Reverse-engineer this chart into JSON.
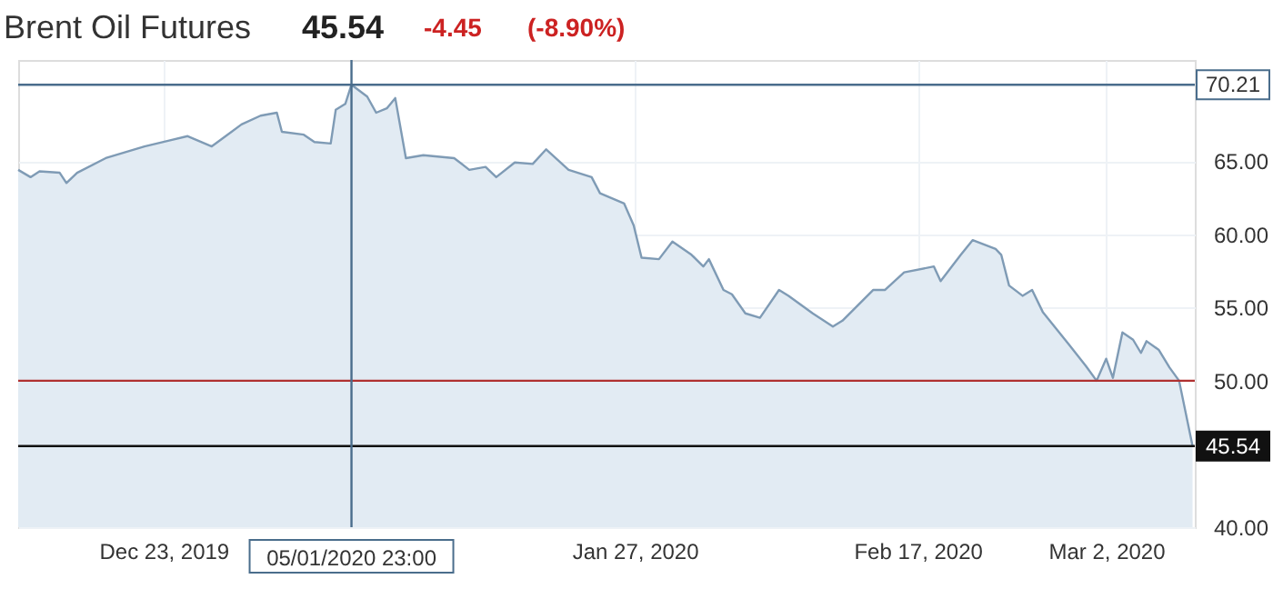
{
  "chart_data": {
    "type": "area",
    "title": "Brent Oil Futures",
    "annotations": [
      "45.54",
      "-4.45",
      "(-8.90%)"
    ],
    "x": [
      "2019-12-12T05:00",
      "2019-12-13T03:00",
      "2019-12-13T19:00",
      "2019-12-15T07:00",
      "2019-12-15T19:00",
      "2019-12-16T14:00",
      "2019-12-18T17:00",
      "2019-12-21T14:00",
      "2019-12-23T10:00",
      "2019-12-24T19:00",
      "2019-12-26T14:00",
      "2019-12-28T19:00",
      "2019-12-30T05:00",
      "2019-12-31T10:00",
      "2019-12-31T19:00",
      "2020-01-02T10:00",
      "2020-01-03T05:00",
      "2020-01-04T10:00",
      "2020-01-04T19:00",
      "2020-01-05T12:00",
      "2020-01-05T23:00",
      "2020-01-07T03:00",
      "2020-01-07T19:00",
      "2020-01-08T14:00",
      "2020-01-09T05:00",
      "2020-01-10T00:00",
      "2020-01-11T07:00",
      "2020-01-13T14:00",
      "2020-01-14T17:00",
      "2020-01-15T22:00",
      "2020-01-16T17:00",
      "2020-01-18T02:00",
      "2020-01-19T10:00",
      "2020-01-20T10:00",
      "2020-01-22T02:00",
      "2020-01-23T19:00",
      "2020-01-24T10:00",
      "2020-01-26T05:00",
      "2020-01-26T22:00",
      "2020-01-27T12:00",
      "2020-01-28T19:00",
      "2020-01-29T19:00",
      "2020-01-31T05:00",
      "2020-02-01T02:00",
      "2020-02-01T12:00",
      "2020-02-02T14:00",
      "2020-02-03T05:00",
      "2020-02-04T05:00",
      "2020-02-05T07:00",
      "2020-02-06T17:00",
      "2020-02-07T10:00",
      "2020-02-09T05:00",
      "2020-02-10T17:00",
      "2020-02-11T10:00",
      "2020-02-13T17:00",
      "2020-02-14T14:00",
      "2020-02-16T00:00",
      "2020-02-18T05:00",
      "2020-02-18T17:00",
      "2020-02-20T05:00",
      "2020-02-21T02:00",
      "2020-02-22T19:00",
      "2020-02-23T05:00",
      "2020-02-23T19:00",
      "2020-02-24T19:00",
      "2020-02-25T12:00",
      "2020-02-26T07:00",
      "2020-02-28T05:00",
      "2020-02-29T12:00",
      "2020-03-01T07:00",
      "2020-03-02T00:00",
      "2020-03-02T12:00",
      "2020-03-03T05:00",
      "2020-03-04T00:00",
      "2020-03-04T14:00",
      "2020-03-05T00:00",
      "2020-03-05T22:00",
      "2020-03-06T17:00",
      "2020-03-07T10:00",
      "2020-03-08T10:00"
    ],
    "values": [
      64.4,
      63.9,
      64.3,
      64.2,
      63.5,
      64.2,
      65.2,
      66.0,
      66.4,
      66.7,
      66.0,
      67.5,
      68.1,
      68.3,
      67.0,
      66.8,
      66.3,
      66.2,
      68.5,
      68.9,
      70.21,
      69.4,
      68.3,
      68.6,
      69.3,
      65.2,
      65.4,
      65.2,
      64.4,
      64.6,
      63.9,
      64.9,
      64.8,
      65.8,
      64.4,
      63.9,
      62.8,
      62.1,
      60.6,
      58.4,
      58.3,
      59.5,
      58.6,
      57.8,
      58.3,
      56.2,
      55.9,
      54.6,
      54.3,
      56.2,
      55.8,
      54.6,
      53.7,
      54.1,
      56.2,
      56.2,
      57.4,
      57.8,
      56.8,
      58.6,
      59.6,
      59.0,
      58.6,
      56.5,
      55.8,
      56.2,
      54.7,
      52.5,
      51.0,
      50.0,
      51.5,
      50.2,
      53.3,
      52.8,
      51.9,
      52.7,
      52.1,
      50.9,
      50.0,
      45.54
    ],
    "color": "#7f9bb5",
    "xlim": [
      "2019-12-12T05:00",
      "2020-03-08T14:00"
    ],
    "xticks": [
      {
        "value": "2019-12-23",
        "label": "Dec 23, 2019"
      },
      {
        "value": "2020-01-27",
        "label": "Jan 27, 2020"
      },
      {
        "value": "2020-02-17",
        "label": "Feb 17, 2020"
      },
      {
        "value": "2020-03-02",
        "label": "Mar 2, 2020"
      }
    ],
    "ylim": [
      40,
      71.9
    ],
    "yticks": [
      {
        "value": 40,
        "label": "40.00"
      },
      {
        "value": 50,
        "label": "50.00"
      },
      {
        "value": 55,
        "label": "55.00"
      },
      {
        "value": 60,
        "label": "60.00"
      },
      {
        "value": 65,
        "label": "65.00"
      }
    ],
    "grid": true,
    "ref_lines": [
      {
        "axis": "y",
        "value": 70.21,
        "label": "70.21",
        "color": "#4a6d8c"
      },
      {
        "axis": "y",
        "value": 50,
        "color": "#b03030"
      },
      {
        "axis": "y",
        "value": 45.54,
        "label": "45.54",
        "color": "#111111"
      },
      {
        "axis": "x",
        "value": "2020-01-05T23:00",
        "label": "05/01/2020 23:00",
        "color": "#4a6d8c"
      }
    ]
  }
}
